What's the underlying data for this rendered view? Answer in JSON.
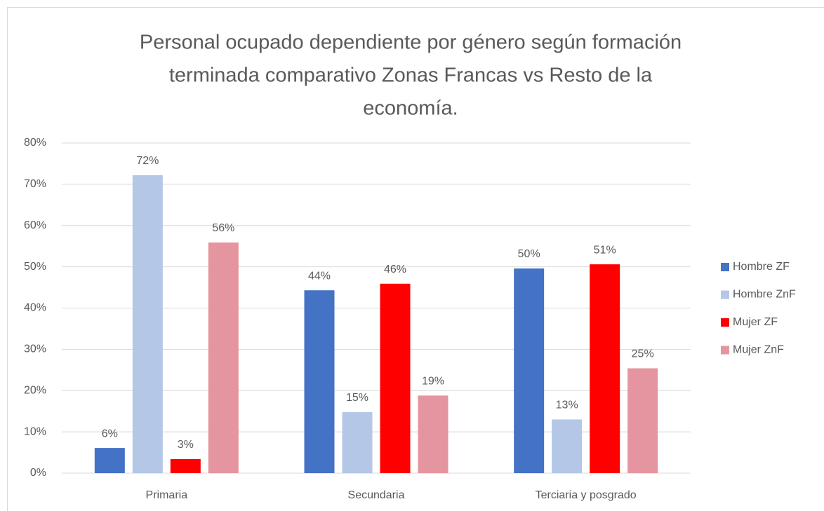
{
  "chart_data": {
    "type": "bar",
    "title": [
      "Personal ocupado dependiente por género según formación",
      "terminada comparativo Zonas Francas vs Resto de la",
      "economía."
    ],
    "categories": [
      "Primaria",
      "Secundaria",
      "Terciaria y posgrado"
    ],
    "series": [
      {
        "name": "Hombre ZF",
        "color": "#4472c4",
        "values": [
          6.1,
          44.3,
          49.6
        ],
        "value_labels": [
          "6%",
          "44%",
          "50%"
        ]
      },
      {
        "name": "Hombre ZnF",
        "color": "#b4c7e7",
        "values": [
          72.2,
          14.8,
          13.0
        ],
        "value_labels": [
          "72%",
          "15%",
          "13%"
        ]
      },
      {
        "name": "Mujer ZF",
        "color": "#ff0000",
        "values": [
          3.4,
          45.9,
          50.6
        ],
        "value_labels": [
          "3%",
          "46%",
          "51%"
        ]
      },
      {
        "name": "Mujer ZnF",
        "color": "#e5959f",
        "values": [
          55.9,
          18.8,
          25.4
        ],
        "value_labels": [
          "56%",
          "19%",
          "25%"
        ]
      }
    ],
    "ylim": [
      0,
      80
    ],
    "yticks": [
      {
        "value": 0,
        "label": "0%"
      },
      {
        "value": 10,
        "label": "10%"
      },
      {
        "value": 20,
        "label": "20%"
      },
      {
        "value": 30,
        "label": "30%"
      },
      {
        "value": 40,
        "label": "40%"
      },
      {
        "value": 50,
        "label": "50%"
      },
      {
        "value": 60,
        "label": "60%"
      },
      {
        "value": 70,
        "label": "70%"
      },
      {
        "value": 80,
        "label": "80%"
      }
    ],
    "grid": true,
    "legend": "right"
  }
}
